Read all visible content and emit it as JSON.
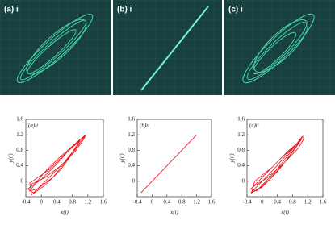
{
  "photos": [
    {
      "label": "(a) i"
    },
    {
      "label": "(b) i"
    },
    {
      "label": "(c) i"
    }
  ],
  "chart_data": [
    {
      "type": "line",
      "title": "(a)ii",
      "xlabel": "x(t)",
      "ylabel": "y(t')",
      "x": [
        -0.3,
        0.1,
        0.5,
        0.9,
        1.1,
        1.15,
        1.0,
        0.6,
        0.2,
        -0.2,
        -0.35,
        0.0,
        0.4,
        0.8,
        1.1,
        0.9,
        0.5,
        0.1,
        -0.25,
        -0.3,
        0.2,
        0.6,
        1.0,
        0.7,
        0.3,
        -0.1,
        -0.3,
        0.05,
        0.45,
        0.85,
        1.12
      ],
      "series": [
        {
          "color": "#e8141c",
          "values": [
            -0.1,
            0.1,
            0.4,
            0.8,
            1.1,
            1.2,
            1.0,
            0.5,
            0.1,
            -0.3,
            -0.2,
            0.05,
            0.45,
            0.9,
            1.15,
            0.85,
            0.3,
            -0.1,
            -0.35,
            -0.05,
            0.3,
            0.7,
            1.05,
            0.6,
            0.1,
            -0.2,
            -0.25,
            0.2,
            0.6,
            0.95,
            1.18
          ]
        }
      ],
      "xlim": [
        -0.4,
        1.6
      ],
      "ylim": [
        -0.4,
        1.6
      ],
      "xticks": [
        -0.4,
        0,
        0.4,
        0.8,
        1.2,
        1.6
      ],
      "yticks": [
        0,
        0.4,
        0.8,
        1.2,
        1.6
      ]
    },
    {
      "type": "line",
      "title": "(b)ii",
      "xlabel": "x(t)",
      "ylabel": "y(t')",
      "x": [
        -0.3,
        1.2
      ],
      "series": [
        {
          "color": "#e8141c",
          "values": [
            -0.3,
            1.2
          ]
        }
      ],
      "xlim": [
        -0.4,
        1.6
      ],
      "ylim": [
        -0.4,
        1.6
      ],
      "xticks": [
        -0.4,
        0,
        0.4,
        0.8,
        1.2,
        1.6
      ],
      "yticks": [
        0,
        0.4,
        0.8,
        1.2,
        1.6
      ]
    },
    {
      "type": "line",
      "title": "(c)ii",
      "xlabel": "x(t)",
      "ylabel": "y(t')",
      "x": [
        -0.25,
        0.15,
        0.55,
        0.95,
        1.1,
        1.05,
        0.7,
        0.3,
        -0.1,
        -0.3,
        -0.1,
        0.3,
        0.7,
        1.05,
        0.8,
        0.4,
        0.0,
        -0.28,
        -0.2,
        0.25,
        0.65,
        1.0,
        0.6,
        0.2,
        -0.15,
        -0.3,
        0.1,
        0.5,
        0.9,
        1.08
      ],
      "series": [
        {
          "color": "#e8141c",
          "values": [
            -0.15,
            0.1,
            0.45,
            0.85,
            1.1,
            1.15,
            0.7,
            0.2,
            -0.2,
            -0.3,
            -0.1,
            0.3,
            0.75,
            1.1,
            0.75,
            0.25,
            -0.15,
            -0.3,
            0.0,
            0.35,
            0.75,
            1.05,
            0.5,
            0.05,
            -0.25,
            -0.2,
            0.2,
            0.6,
            0.95,
            1.17
          ]
        }
      ],
      "xlim": [
        -0.4,
        1.6
      ],
      "ylim": [
        -0.4,
        1.6
      ],
      "xticks": [
        -0.4,
        0,
        0.4,
        0.8,
        1.2,
        1.6
      ],
      "yticks": [
        0,
        0.4,
        0.8,
        1.2,
        1.6
      ]
    }
  ]
}
